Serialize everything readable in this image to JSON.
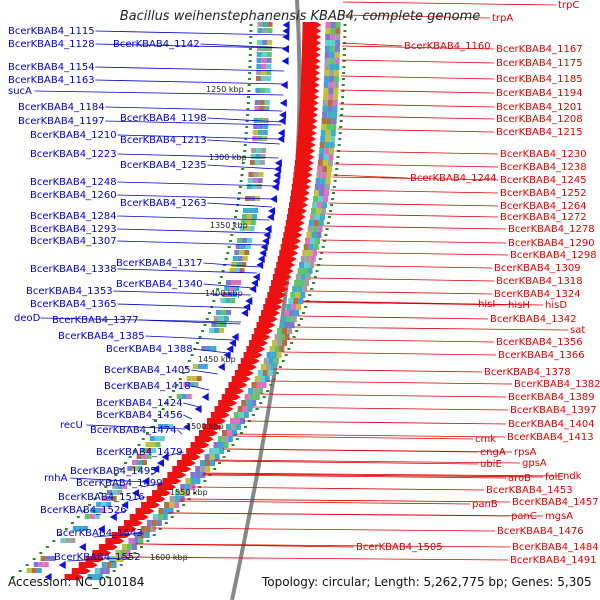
{
  "title": "Bacillus weihenstephanensis KBAB4, complete genome",
  "accession": "Accession: NC_010184",
  "summary": "Topology: circular; Length: 5,262,775 bp; Genes: 5,305",
  "scale_labels": [
    "1250 kbp",
    "1300 kbp",
    "1350 kbp",
    "1400 kbp",
    "1450 kbp",
    "1500 kbp",
    "1550 kbp",
    "1600 kbp"
  ],
  "left_labels": [
    "BcerKBAB4_1115",
    "BcerKBAB4_1128",
    "BcerKBAB4_1142",
    "BcerKBAB4_1154",
    "BcerKBAB4_1163",
    "sucA",
    "BcerKBAB4_1184",
    "BcerKBAB4_1197",
    "BcerKBAB4_1198",
    "BcerKBAB4_1210",
    "BcerKBAB4_1213",
    "BcerKBAB4_1223",
    "BcerKBAB4_1235",
    "BcerKBAB4_1248",
    "BcerKBAB4_1260",
    "BcerKBAB4_1263",
    "BcerKBAB4_1284",
    "BcerKBAB4_1293",
    "BcerKBAB4_1307",
    "BcerKBAB4_1317",
    "BcerKBAB4_1338",
    "BcerKBAB4_1340",
    "BcerKBAB4_1353",
    "BcerKBAB4_1365",
    "deoD",
    "BcerKBAB4_1377",
    "BcerKBAB4_1385",
    "BcerKBAB4_1388",
    "BcerKBAB4_1405",
    "BcerKBAB4_1418",
    "BcerKBAB4_1424",
    "BcerKBAB4_1456",
    "recU",
    "BcerKBAB4_1474",
    "BcerKBAB4_1479",
    "BcerKBAB4_1495",
    "rnhA",
    "BcerKBAB4_1499",
    "BcerKBAB4_1516",
    "BcerKBAB4_1526",
    "BcerKBAB4_1543",
    "BcerKBAB4_1552"
  ],
  "right_labels": [
    "trpC",
    "trpA",
    "BcerKBAB4_1160",
    "BcerKBAB4_1167",
    "BcerKBAB4_1175",
    "BcerKBAB4_1185",
    "BcerKBAB4_1194",
    "BcerKBAB4_1201",
    "BcerKBAB4_1208",
    "BcerKBAB4_1215",
    "BcerKBAB4_1230",
    "BcerKBAB4_1238",
    "BcerKBAB4_1244",
    "BcerKBAB4_1245",
    "BcerKBAB4_1252",
    "BcerKBAB4_1264",
    "BcerKBAB4_1272",
    "BcerKBAB4_1278",
    "BcerKBAB4_1290",
    "BcerKBAB4_1298",
    "BcerKBAB4_1309",
    "BcerKBAB4_1318",
    "BcerKBAB4_1324",
    "hisI",
    "hisH",
    "hisD",
    "BcerKBAB4_1342",
    "sat",
    "BcerKBAB4_1356",
    "BcerKBAB4_1366",
    "BcerKBAB4_1378",
    "BcerKBAB4_1382",
    "BcerKBAB4_1389",
    "BcerKBAB4_1397",
    "BcerKBAB4_1404",
    "cmk",
    "BcerKBAB4_1413",
    "rpsA",
    "engA",
    "gpsA",
    "ubiE",
    "folE",
    "aroB",
    "ndk",
    "BcerKBAB4_1453",
    "panB",
    "BcerKBAB4_1457",
    "panC",
    "mgsA",
    "BcerKBAB4_1476",
    "BcerKBAB4_1505",
    "BcerKBAB4_1484",
    "BcerKBAB4_1491"
  ]
}
